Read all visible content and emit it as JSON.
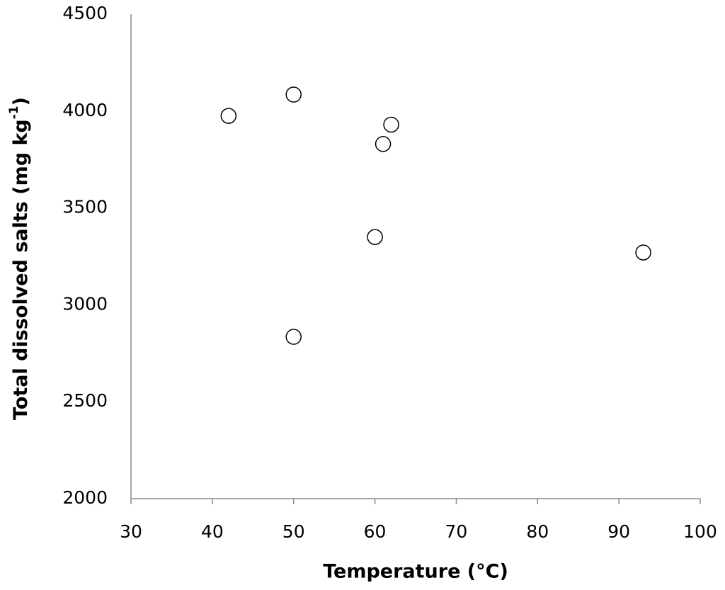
{
  "chart_data": {
    "type": "scatter",
    "x_label": "Temperature (°C)",
    "y_label": [
      "Total dissolved salts (mg kg",
      "-1",
      ")"
    ],
    "series": [
      {
        "color": "#000000",
        "x": [
          42,
          50,
          62,
          61,
          60,
          93,
          50
        ],
        "values": [
          3975,
          4085,
          3930,
          3830,
          3350,
          3270,
          2835
        ]
      }
    ],
    "xlim": [
      30,
      100
    ],
    "xticks": [
      30,
      40,
      50,
      60,
      70,
      80,
      90,
      100
    ],
    "ylim": [
      2000,
      4500
    ],
    "yticks": [
      2000,
      2500,
      3000,
      3500,
      4000,
      4500
    ],
    "grid": false
  }
}
